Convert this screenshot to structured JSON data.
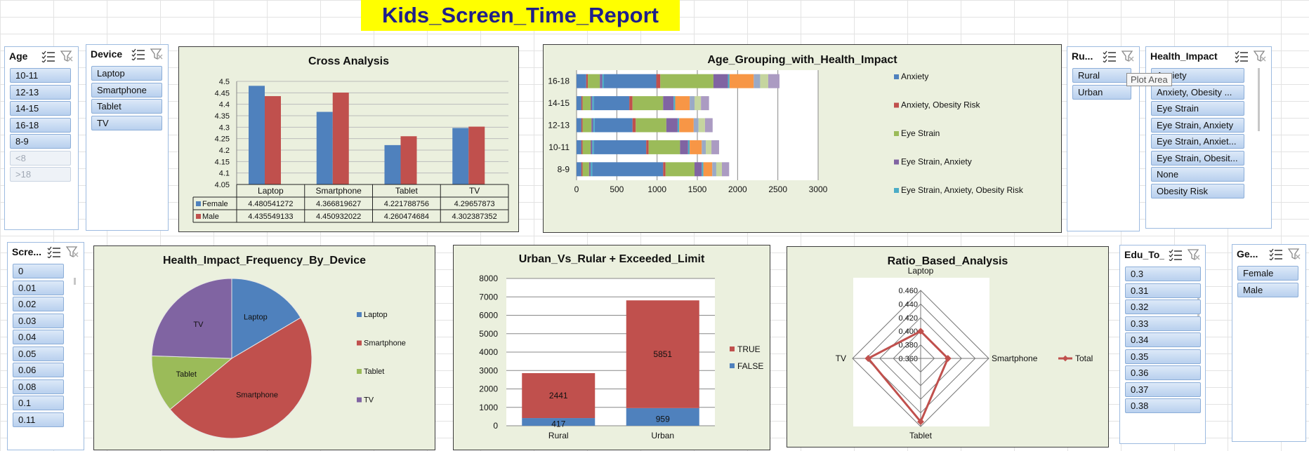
{
  "title": "Kids_Screen_Time_Report",
  "tooltip": "Plot Area",
  "slicers": {
    "age": {
      "title": "Age",
      "items": [
        "10-11",
        "12-13",
        "14-15",
        "16-18",
        "8-9",
        "<8",
        ">18"
      ]
    },
    "device": {
      "title": "Device",
      "items": [
        "Laptop",
        "Smartphone",
        "Tablet",
        "TV"
      ]
    },
    "rural": {
      "title": "Ru...",
      "items": [
        "Rural",
        "Urban"
      ]
    },
    "health": {
      "title": "Health_Impact",
      "items": [
        "Anxiety",
        "Anxiety, Obesity ...",
        "Eye Strain",
        "Eye Strain, Anxiety",
        "Eye Strain, Anxiet...",
        "Eye Strain, Obesit...",
        "None",
        "Obesity Risk"
      ]
    },
    "screen": {
      "title": "Scre...",
      "items": [
        "0",
        "0.01",
        "0.02",
        "0.03",
        "0.04",
        "0.05",
        "0.06",
        "0.08",
        "0.1",
        "0.11"
      ]
    },
    "edu": {
      "title": "Edu_To_Re...",
      "items": [
        "0.3",
        "0.31",
        "0.32",
        "0.33",
        "0.34",
        "0.35",
        "0.36",
        "0.37",
        "0.38"
      ]
    },
    "gender": {
      "title": "Ge...",
      "items": [
        "Female",
        "Male"
      ]
    }
  },
  "icons": {
    "multi_select": "multi-select-icon",
    "clear_filter": "clear-filter-icon"
  },
  "colors": {
    "blue": "#4f81bd",
    "red": "#c0504d",
    "green": "#9bbb59",
    "purple": "#8064a2",
    "teal": "#4bacc6",
    "orange": "#f79646",
    "chart_bg": "#ebf0de",
    "title_bg": "#ffff00",
    "title_text": "#1f1f8a"
  },
  "chart_data": [
    {
      "id": "cross",
      "type": "bar",
      "title": "Cross Analysis",
      "categories": [
        "Laptop",
        "Smartphone",
        "Tablet",
        "TV"
      ],
      "series": [
        {
          "name": "Female",
          "values": [
            4.480541272,
            4.366819627,
            4.221788756,
            4.29657873
          ]
        },
        {
          "name": "Male",
          "values": [
            4.435549133,
            4.450932022,
            4.260474684,
            4.302387352
          ]
        }
      ],
      "table_values": {
        "Female": [
          "4.480541272",
          "4.366819627",
          "4.221788756",
          "4.29657873"
        ],
        "Male": [
          "4.435549133",
          "4.450932022",
          "4.260474684",
          "4.302387352"
        ]
      },
      "ylim": [
        4.05,
        4.5
      ],
      "yticks": [
        "4.5",
        "4.45",
        "4.4",
        "4.35",
        "4.3",
        "4.25",
        "4.2",
        "4.15",
        "4.1",
        "4.05"
      ],
      "grid": true,
      "legend": "data table"
    },
    {
      "id": "age",
      "type": "bar",
      "orientation": "horizontal",
      "stacked": true,
      "title": "Age_Grouping_with_Health_Impact",
      "categories": [
        "16-18",
        "14-15",
        "12-13",
        "10-11",
        "8-9"
      ],
      "xlim": [
        0,
        3000
      ],
      "xticks": [
        "0",
        "500",
        "1000",
        "1500",
        "2000",
        "2500",
        "3000"
      ],
      "legend_entries": [
        "Anxiety",
        "Anxiety, Obesity Risk",
        "Eye Strain",
        "Eye Strain, Anxiety",
        "Eye Strain, Anxiety, Obesity Risk"
      ],
      "series": [
        {
          "name": "Anxiety",
          "values": [
            120,
            60,
            60,
            60,
            60
          ]
        },
        {
          "name": "Anxiety, Obesity Risk",
          "values": [
            20,
            15,
            15,
            15,
            15
          ]
        },
        {
          "name": "Eye Strain",
          "values": [
            150,
            100,
            110,
            100,
            80
          ]
        },
        {
          "name": "Eye Strain, Anxiety",
          "values": [
            30,
            20,
            20,
            20,
            20
          ]
        },
        {
          "name": "Eye Strain, Anxiety, Obesity Risk",
          "values": [
            20,
            20,
            20,
            20,
            20
          ]
        },
        {
          "name": "",
          "values": [
            650,
            440,
            470,
            650,
            880
          ]
        },
        {
          "name": "",
          "values": [
            50,
            40,
            40,
            30,
            30
          ]
        },
        {
          "name": "",
          "values": [
            660,
            380,
            380,
            390,
            360
          ]
        },
        {
          "name": "",
          "values": [
            180,
            130,
            140,
            100,
            90
          ]
        },
        {
          "name": "",
          "values": [
            20,
            20,
            20,
            20,
            20
          ]
        },
        {
          "name": "",
          "values": [
            300,
            180,
            180,
            150,
            110
          ]
        },
        {
          "name": "",
          "values": [
            80,
            60,
            60,
            50,
            50
          ]
        },
        {
          "name": "",
          "values": [
            100,
            80,
            80,
            70,
            70
          ]
        },
        {
          "name": "",
          "values": [
            140,
            100,
            95,
            95,
            90
          ]
        }
      ]
    },
    {
      "id": "pie",
      "type": "pie",
      "title": "Health_Impact_Frequency_By_Device",
      "categories": [
        "Laptop",
        "Smartphone",
        "Tablet",
        "TV"
      ],
      "values": [
        16.5,
        47.5,
        11.5,
        24.5
      ],
      "legend": "right"
    },
    {
      "id": "urban",
      "type": "bar",
      "stacked": true,
      "title": "Urban_Vs_Rular + Exceeded_Limit",
      "categories": [
        "Rural",
        "Urban"
      ],
      "series": [
        {
          "name": "FALSE",
          "values": [
            417,
            959
          ]
        },
        {
          "name": "TRUE",
          "values": [
            2441,
            5851
          ]
        }
      ],
      "legend_entries": [
        "TRUE",
        "FALSE"
      ],
      "ylim": [
        0,
        8000
      ],
      "yticks": [
        "8000",
        "7000",
        "6000",
        "5000",
        "4000",
        "3000",
        "2000",
        "1000",
        "0"
      ],
      "legend": "right"
    },
    {
      "id": "radar",
      "type": "radar",
      "title": "Ratio_Based_Analysis",
      "categories": [
        "Laptop",
        "Smartphone",
        "Tablet",
        "TV"
      ],
      "series": [
        {
          "name": "Total",
          "values": [
            0.4,
            0.4,
            0.453,
            0.437
          ]
        }
      ],
      "rlim": [
        0.36,
        0.46
      ],
      "rticks": [
        "0.460",
        "0.440",
        "0.420",
        "0.400",
        "0.380",
        "0.360"
      ],
      "legend": "right"
    }
  ]
}
